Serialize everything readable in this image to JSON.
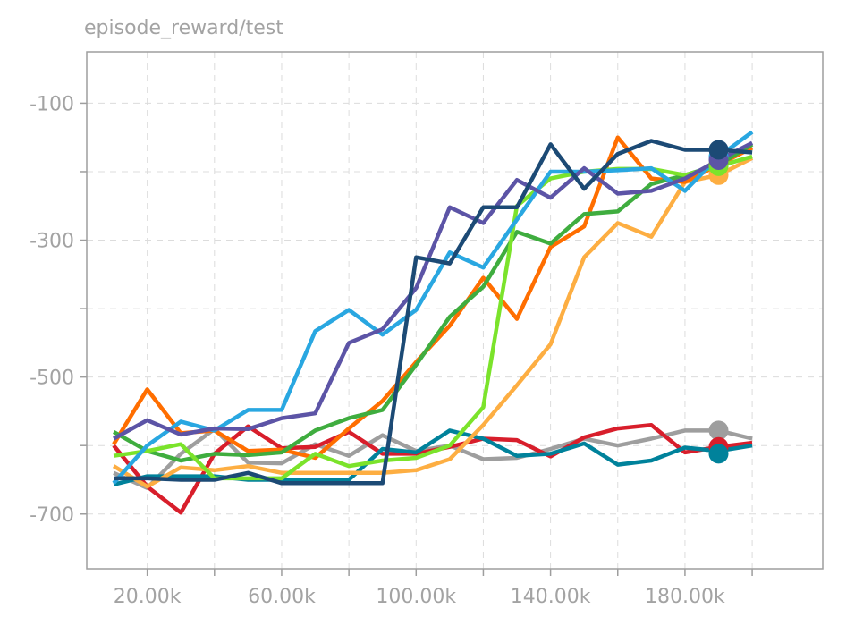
{
  "chart_data": {
    "type": "line",
    "title": "episode_reward/test",
    "xlabel": "",
    "ylabel": "",
    "xlim": [
      2000,
      221000
    ],
    "ylim": [
      -780,
      -25
    ],
    "xticks": [
      {
        "value": 20000,
        "label": "20.00k"
      },
      {
        "value": 60000,
        "label": "60.00k"
      },
      {
        "value": 100000,
        "label": "100.00k"
      },
      {
        "value": 140000,
        "label": "140.00k"
      },
      {
        "value": 180000,
        "label": "180.00k"
      }
    ],
    "yticks": [
      {
        "value": -100,
        "label": "-100"
      },
      {
        "value": -300,
        "label": "-300"
      },
      {
        "value": -500,
        "label": "-500"
      },
      {
        "value": -700,
        "label": "-700"
      }
    ],
    "minor_xticks": [
      40000,
      80000,
      120000,
      160000,
      200000
    ],
    "minor_yticks": [
      -200,
      -400,
      -600
    ],
    "grid": true,
    "x": [
      10000,
      20000,
      30000,
      40000,
      50000,
      60000,
      70000,
      80000,
      90000,
      100000,
      110000,
      120000,
      130000,
      140000,
      150000,
      160000,
      170000,
      180000,
      190000,
      200000
    ],
    "series": [
      {
        "color": "#9e9e9e",
        "values": [
          -640,
          -662,
          -612,
          -576,
          -625,
          -626,
          -598,
          -615,
          -585,
          -608,
          -600,
          -620,
          -618,
          -605,
          -590,
          -600,
          -590,
          -578,
          -578,
          -590
        ],
        "endpoint": -578
      },
      {
        "color": "#d81e2b",
        "values": [
          -600,
          -660,
          -698,
          -612,
          -572,
          -604,
          -602,
          -580,
          -612,
          -612,
          -602,
          -590,
          -592,
          -616,
          -588,
          -575,
          -570,
          -610,
          -602,
          -596
        ],
        "endpoint": -602
      },
      {
        "color": "#00829b",
        "values": [
          -657,
          -645,
          -645,
          -645,
          -650,
          -650,
          -650,
          -650,
          -605,
          -610,
          -578,
          -590,
          -615,
          -612,
          -597,
          -628,
          -622,
          -603,
          -608,
          -600
        ],
        "endpoint": -612
      },
      {
        "color": "#fdae42",
        "values": [
          -630,
          -660,
          -632,
          -636,
          -630,
          -640,
          -640,
          -640,
          -640,
          -636,
          -620,
          -570,
          -512,
          -452,
          -325,
          -275,
          -295,
          -215,
          -205,
          -180
        ],
        "endpoint": -205
      },
      {
        "color": "#ff6e00",
        "values": [
          -598,
          -518,
          -582,
          -578,
          -608,
          -606,
          -618,
          -575,
          -535,
          -478,
          -425,
          -355,
          -415,
          -310,
          -280,
          -150,
          -210,
          -215,
          -190,
          -165
        ],
        "endpoint": -190
      },
      {
        "color": "#3fad3f",
        "values": [
          -580,
          -608,
          -622,
          -612,
          -614,
          -610,
          -578,
          -560,
          -548,
          -482,
          -412,
          -368,
          -288,
          -305,
          -262,
          -258,
          -218,
          -205,
          -190,
          -160
        ],
        "endpoint": -190
      },
      {
        "color": "#7be32b",
        "values": [
          -615,
          -608,
          -598,
          -648,
          -648,
          -648,
          -612,
          -630,
          -622,
          -618,
          -600,
          -544,
          -250,
          -210,
          -200,
          -196,
          -196,
          -205,
          -192,
          -178
        ],
        "endpoint": -192
      },
      {
        "color": "#29a7e1",
        "values": [
          -655,
          -600,
          -565,
          -578,
          -548,
          -548,
          -433,
          -402,
          -438,
          -402,
          -318,
          -340,
          -270,
          -200,
          -200,
          -198,
          -195,
          -228,
          -178,
          -142
        ],
        "endpoint": -178
      },
      {
        "color": "#5c54a6",
        "values": [
          -590,
          -563,
          -584,
          -575,
          -576,
          -560,
          -553,
          -450,
          -430,
          -370,
          -252,
          -275,
          -212,
          -238,
          -195,
          -232,
          -228,
          -210,
          -183,
          -158
        ],
        "endpoint": -183
      },
      {
        "color": "#1c4a75",
        "values": [
          -648,
          -648,
          -650,
          -650,
          -640,
          -655,
          -655,
          -655,
          -655,
          -325,
          -334,
          -252,
          -252,
          -160,
          -225,
          -174,
          -155,
          -168,
          -168,
          -172
        ],
        "endpoint": -168
      }
    ]
  }
}
